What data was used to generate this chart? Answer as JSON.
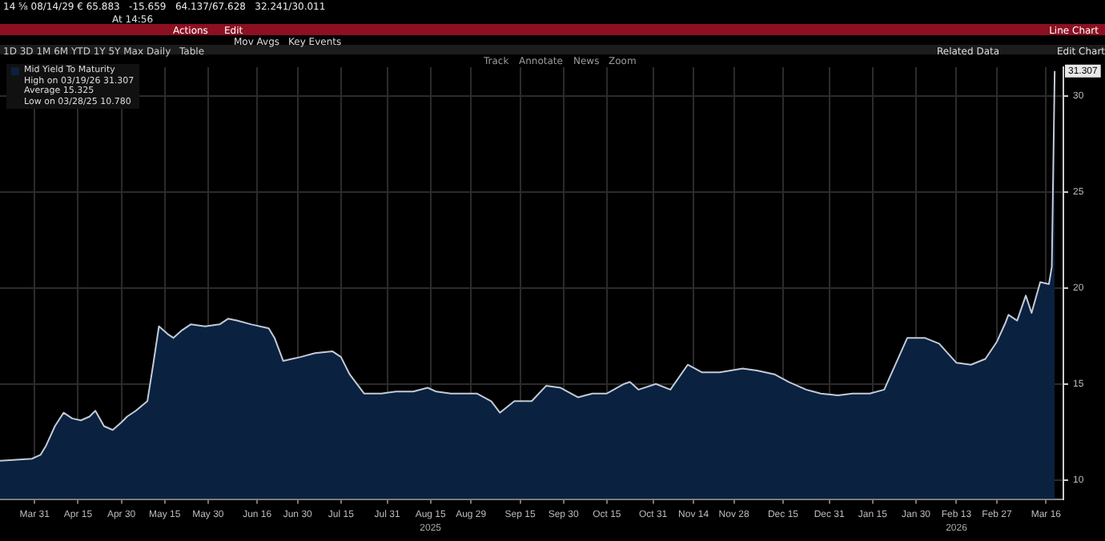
{
  "chart_data": {
    "type": "area",
    "legend": "top left",
    "grid": true,
    "series": [
      {
        "name": "Mid Yield To Maturity",
        "color": "#0a2140",
        "x": [
          "2025-03-19",
          "2025-03-30",
          "2025-04-02",
          "2025-04-04",
          "2025-04-07",
          "2025-04-10",
          "2025-04-13",
          "2025-04-16",
          "2025-04-19",
          "2025-04-21",
          "2025-04-24",
          "2025-04-27",
          "2025-04-30",
          "2025-05-02",
          "2025-05-05",
          "2025-05-09",
          "2025-05-11",
          "2025-05-13",
          "2025-05-16",
          "2025-05-18",
          "2025-05-21",
          "2025-05-24",
          "2025-05-29",
          "2025-06-03",
          "2025-06-06",
          "2025-06-09",
          "2025-06-14",
          "2025-06-20",
          "2025-06-22",
          "2025-06-25",
          "2025-06-28",
          "2025-07-01",
          "2025-07-06",
          "2025-07-12",
          "2025-07-15",
          "2025-07-18",
          "2025-07-23",
          "2025-07-29",
          "2025-08-03",
          "2025-08-09",
          "2025-08-14",
          "2025-08-17",
          "2025-08-22",
          "2025-08-31",
          "2025-09-05",
          "2025-09-08",
          "2025-09-13",
          "2025-09-19",
          "2025-09-24",
          "2025-09-29",
          "2025-10-05",
          "2025-10-10",
          "2025-10-15",
          "2025-10-21",
          "2025-10-23",
          "2025-10-26",
          "2025-11-01",
          "2025-11-06",
          "2025-11-12",
          "2025-11-17",
          "2025-11-23",
          "2025-12-01",
          "2025-12-06",
          "2025-12-12",
          "2025-12-17",
          "2025-12-23",
          "2025-12-28",
          "2026-01-03",
          "2026-01-08",
          "2026-01-14",
          "2026-01-19",
          "2026-01-27",
          "2026-02-02",
          "2026-02-07",
          "2026-02-13",
          "2026-02-18",
          "2026-02-23",
          "2026-02-27",
          "2026-03-02",
          "2026-03-03",
          "2026-03-06",
          "2026-03-09",
          "2026-03-11",
          "2026-03-14",
          "2026-03-17",
          "2026-03-18",
          "2026-03-19"
        ],
        "values": [
          11.0,
          11.1,
          11.3,
          11.8,
          12.8,
          13.5,
          13.2,
          13.1,
          13.3,
          13.6,
          12.8,
          12.6,
          13.0,
          13.3,
          13.6,
          14.1,
          16.0,
          18.0,
          17.6,
          17.4,
          17.8,
          18.1,
          18.0,
          18.1,
          18.4,
          18.3,
          18.1,
          17.9,
          17.4,
          16.2,
          16.3,
          16.4,
          16.6,
          16.7,
          16.4,
          15.5,
          14.5,
          14.5,
          14.6,
          14.6,
          14.8,
          14.6,
          14.5,
          14.5,
          14.1,
          13.5,
          14.1,
          14.1,
          14.9,
          14.8,
          14.3,
          14.5,
          14.5,
          15.0,
          15.1,
          14.7,
          15.0,
          14.7,
          16.0,
          15.6,
          15.6,
          15.8,
          15.7,
          15.5,
          15.1,
          14.7,
          14.5,
          14.4,
          14.5,
          14.5,
          14.7,
          17.4,
          17.4,
          17.1,
          16.1,
          16.0,
          16.3,
          17.2,
          18.2,
          18.6,
          18.3,
          19.6,
          18.7,
          20.3,
          20.2,
          21.1,
          31.3
        ]
      }
    ],
    "xlim": [
      "2025-03-19",
      "2026-03-22"
    ],
    "xticks": [
      {
        "value": "2025-03-31",
        "label": "Mar 31"
      },
      {
        "value": "2025-04-15",
        "label": "Apr 15"
      },
      {
        "value": "2025-04-30",
        "label": "Apr 30"
      },
      {
        "value": "2025-05-15",
        "label": "May 15"
      },
      {
        "value": "2025-05-30",
        "label": "May 30"
      },
      {
        "value": "2025-06-16",
        "label": "Jun 16"
      },
      {
        "value": "2025-06-30",
        "label": "Jun 30"
      },
      {
        "value": "2025-07-15",
        "label": "Jul 15"
      },
      {
        "value": "2025-07-31",
        "label": "Jul 31"
      },
      {
        "value": "2025-08-15",
        "label": "Aug 15"
      },
      {
        "value": "2025-08-29",
        "label": "Aug 29"
      },
      {
        "value": "2025-09-15",
        "label": "Sep 15"
      },
      {
        "value": "2025-09-30",
        "label": "Sep 30"
      },
      {
        "value": "2025-10-15",
        "label": "Oct 15"
      },
      {
        "value": "2025-10-31",
        "label": "Oct 31"
      },
      {
        "value": "2025-11-14",
        "label": "Nov 14"
      },
      {
        "value": "2025-11-28",
        "label": "Nov 28"
      },
      {
        "value": "2025-12-15",
        "label": "Dec 15"
      },
      {
        "value": "2025-12-31",
        "label": "Dec 31"
      },
      {
        "value": "2026-01-15",
        "label": "Jan 15"
      },
      {
        "value": "2026-01-30",
        "label": "Jan 30"
      },
      {
        "value": "2026-02-13",
        "label": "Feb 13"
      },
      {
        "value": "2026-02-27",
        "label": "Feb 27"
      },
      {
        "value": "2026-03-16",
        "label": "Mar 16"
      }
    ],
    "ylim": [
      9,
      31.5
    ],
    "yticks": [
      10,
      15,
      20,
      25,
      30
    ],
    "annotations": [
      "14 ⅝ 08/14/29 € 65.883   -15.659   64.137/67.628   32.241/30.011",
      "At 14:56",
      "Line Chart",
      "Actions",
      "Edit",
      "1D 3D 1M 6M YTD 1Y 5Y Max Daily",
      "Table",
      "Mov Avgs",
      "Key Events",
      "Related Data",
      "Edit Chart",
      "Track",
      "Annotate",
      "News",
      "Zoom",
      "High on 03/19/26 31.307",
      "Average 15.325",
      "Low on 03/28/25 10.780",
      "2025",
      "2026",
      {
        "text": "31.307",
        "x": "2026-03-19",
        "y": 31.307
      }
    ]
  }
}
